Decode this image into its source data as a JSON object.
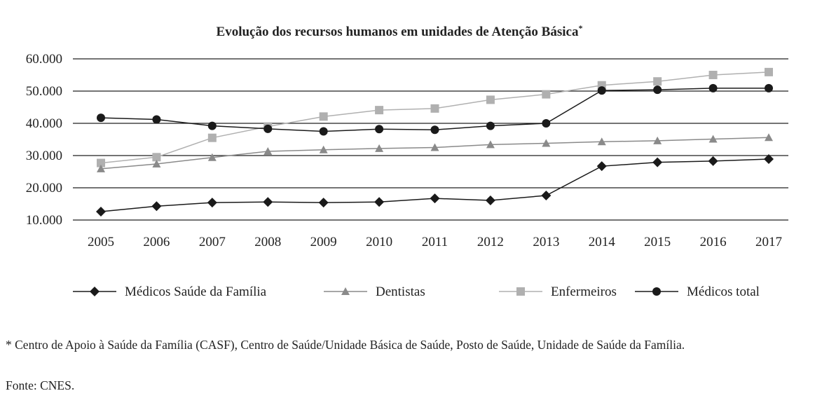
{
  "chart_data": {
    "type": "line",
    "title": "Evolução dos recursos humanos em unidades de Atenção Básica",
    "title_marker": "*",
    "x": [
      "2005",
      "2006",
      "2007",
      "2008",
      "2009",
      "2010",
      "2011",
      "2012",
      "2013",
      "2014",
      "2015",
      "2016",
      "2017"
    ],
    "y_ticks": [
      "10.000",
      "20.000",
      "30.000",
      "40.000",
      "50.000",
      "60.000"
    ],
    "ylim": [
      10000,
      60000
    ],
    "grid": "horizontal",
    "legend_position": "bottom",
    "series": [
      {
        "name": "Médicos Saúde da Família",
        "marker": "diamond",
        "color": "#1a1a1a",
        "values": [
          12600,
          14300,
          15400,
          15600,
          15400,
          15600,
          16700,
          16100,
          17600,
          26700,
          27900,
          28300,
          28900
        ]
      },
      {
        "name": "Dentistas",
        "marker": "triangle",
        "color": "#8a8a8a",
        "values": [
          25900,
          27400,
          29400,
          31300,
          31800,
          32200,
          32500,
          33400,
          33800,
          34300,
          34600,
          35100,
          35600
        ]
      },
      {
        "name": "Enfermeiros",
        "marker": "square",
        "color": "#b0b0b0",
        "values": [
          27700,
          29500,
          35500,
          39000,
          42100,
          44100,
          44600,
          47300,
          49000,
          51800,
          53000,
          55000,
          55900
        ]
      },
      {
        "name": "Médicos total",
        "marker": "circle",
        "color": "#1a1a1a",
        "values": [
          41700,
          41200,
          39200,
          38300,
          37500,
          38200,
          38000,
          39200,
          40000,
          50200,
          50400,
          50900,
          50900
        ]
      }
    ]
  },
  "footnote": "* Centro de Apoio à Saúde da Família (CASF), Centro de Saúde/Unidade Básica de Saúde, Posto de Saúde, Unidade de Saúde da Família.",
  "source": "Fonte: CNES."
}
